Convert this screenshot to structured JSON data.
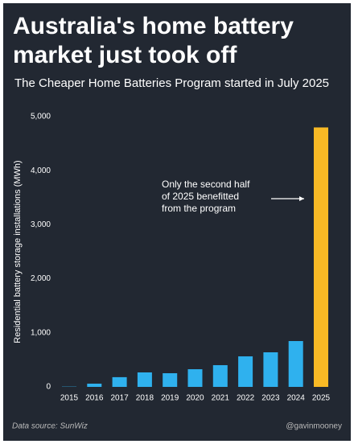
{
  "chart_data": {
    "type": "bar",
    "title_lines": [
      "Australia's home battery",
      "market just took off"
    ],
    "subtitle": "The Cheaper Home Batteries Program started in July 2025",
    "y_label": "Residential battery storage installations (MWh)",
    "categories": [
      "2015",
      "2016",
      "2017",
      "2018",
      "2019",
      "2020",
      "2021",
      "2022",
      "2023",
      "2024",
      "2025"
    ],
    "values": [
      5,
      60,
      180,
      268,
      253,
      327,
      402,
      565,
      640,
      848,
      4800
    ],
    "colors": [
      "#2fb1ee",
      "#2fb1ee",
      "#2fb1ee",
      "#2fb1ee",
      "#2fb1ee",
      "#2fb1ee",
      "#2fb1ee",
      "#2fb1ee",
      "#2fb1ee",
      "#2fb1ee",
      "#f8b925"
    ],
    "ylim": [
      0,
      5000
    ],
    "yticks": [
      0,
      {
        "value": 1000,
        "label": "1,000"
      },
      {
        "value": 2000,
        "label": "2,000"
      },
      {
        "value": 3000,
        "label": "3,000"
      },
      {
        "value": 4000,
        "label": "4,000"
      },
      {
        "value": 5000,
        "label": "5,000"
      }
    ],
    "grid": false,
    "annotation_lines": [
      "Only the second half",
      "of 2025 benefitted",
      "from the program"
    ],
    "source": "Data source: SunWiz",
    "credit": "@gavinmooney"
  }
}
